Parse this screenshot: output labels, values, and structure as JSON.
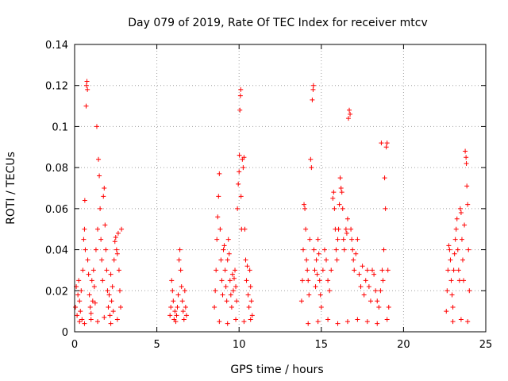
{
  "chart_data": {
    "type": "scatter",
    "title": "Day 079 of 2019, Rate Of TEC Index for receiver mtcv",
    "xlabel": "GPS time / hours",
    "ylabel": "ROTI / TECUs",
    "xlim": [
      0,
      25
    ],
    "ylim": [
      0,
      0.14
    ],
    "x_ticks": [
      0,
      5,
      10,
      15,
      20,
      25
    ],
    "x_tick_labels": [
      "0",
      "5",
      "10",
      "15",
      "20",
      "25"
    ],
    "y_ticks": [
      0,
      0.02,
      0.04,
      0.06,
      0.08,
      0.1,
      0.12,
      0.14
    ],
    "y_tick_labels": [
      "0",
      "0.02",
      "0.04",
      "0.06",
      "0.08",
      "0.1",
      "0.12",
      "0.14"
    ],
    "grid": true,
    "marker": "+",
    "color": "#ff0000",
    "series": [
      {
        "name": "ROTI",
        "points": [
          [
            0.05,
            0.012
          ],
          [
            0.1,
            0.022
          ],
          [
            0.15,
            0.008
          ],
          [
            0.2,
            0.018
          ],
          [
            0.25,
            0.025
          ],
          [
            0.3,
            0.015
          ],
          [
            0.35,
            0.01
          ],
          [
            0.4,
            0.02
          ],
          [
            0.45,
            0.006
          ],
          [
            0.5,
            0.03
          ],
          [
            0.55,
            0.045
          ],
          [
            0.6,
            0.05
          ],
          [
            0.62,
            0.064
          ],
          [
            0.65,
            0.04
          ],
          [
            0.7,
            0.11
          ],
          [
            0.72,
            0.12
          ],
          [
            0.75,
            0.122
          ],
          [
            0.78,
            0.118
          ],
          [
            0.8,
            0.035
          ],
          [
            0.85,
            0.028
          ],
          [
            0.9,
            0.018
          ],
          [
            0.95,
            0.012
          ],
          [
            1.0,
            0.009
          ],
          [
            1.05,
            0.025
          ],
          [
            1.1,
            0.015
          ],
          [
            1.15,
            0.03
          ],
          [
            1.2,
            0.022
          ],
          [
            1.25,
            0.014
          ],
          [
            1.3,
            0.04
          ],
          [
            1.35,
            0.1
          ],
          [
            1.4,
            0.05
          ],
          [
            1.45,
            0.084
          ],
          [
            1.5,
            0.076
          ],
          [
            1.55,
            0.06
          ],
          [
            1.6,
            0.045
          ],
          [
            1.65,
            0.035
          ],
          [
            1.7,
            0.025
          ],
          [
            1.75,
            0.066
          ],
          [
            1.8,
            0.07
          ],
          [
            1.85,
            0.052
          ],
          [
            1.9,
            0.04
          ],
          [
            1.95,
            0.03
          ],
          [
            2.0,
            0.02
          ],
          [
            2.05,
            0.012
          ],
          [
            2.1,
            0.018
          ],
          [
            2.15,
            0.008
          ],
          [
            2.2,
            0.028
          ],
          [
            2.25,
            0.015
          ],
          [
            2.3,
            0.022
          ],
          [
            2.35,
            0.01
          ],
          [
            2.4,
            0.035
          ],
          [
            2.45,
            0.044
          ],
          [
            2.5,
            0.046
          ],
          [
            2.55,
            0.04
          ],
          [
            2.6,
            0.038
          ],
          [
            2.65,
            0.048
          ],
          [
            2.7,
            0.03
          ],
          [
            2.75,
            0.02
          ],
          [
            2.8,
            0.012
          ],
          [
            2.85,
            0.05
          ],
          [
            0.3,
            0.005
          ],
          [
            0.6,
            0.004
          ],
          [
            1.0,
            0.006
          ],
          [
            1.4,
            0.005
          ],
          [
            1.8,
            0.007
          ],
          [
            2.2,
            0.004
          ],
          [
            2.6,
            0.006
          ],
          [
            5.8,
            0.008
          ],
          [
            5.85,
            0.012
          ],
          [
            5.9,
            0.025
          ],
          [
            5.95,
            0.02
          ],
          [
            6.0,
            0.015
          ],
          [
            6.05,
            0.006
          ],
          [
            6.1,
            0.01
          ],
          [
            6.15,
            0.005
          ],
          [
            6.2,
            0.008
          ],
          [
            6.25,
            0.012
          ],
          [
            6.3,
            0.018
          ],
          [
            6.35,
            0.035
          ],
          [
            6.4,
            0.04
          ],
          [
            6.45,
            0.03
          ],
          [
            6.5,
            0.022
          ],
          [
            6.55,
            0.015
          ],
          [
            6.6,
            0.01
          ],
          [
            6.65,
            0.006
          ],
          [
            6.7,
            0.02
          ],
          [
            6.75,
            0.012
          ],
          [
            6.8,
            0.008
          ],
          [
            8.5,
            0.012
          ],
          [
            8.55,
            0.02
          ],
          [
            8.6,
            0.03
          ],
          [
            8.65,
            0.045
          ],
          [
            8.7,
            0.056
          ],
          [
            8.75,
            0.066
          ],
          [
            8.8,
            0.077
          ],
          [
            8.85,
            0.05
          ],
          [
            8.9,
            0.035
          ],
          [
            8.95,
            0.025
          ],
          [
            9.0,
            0.018
          ],
          [
            9.05,
            0.04
          ],
          [
            9.1,
            0.042
          ],
          [
            9.15,
            0.03
          ],
          [
            9.2,
            0.022
          ],
          [
            9.25,
            0.015
          ],
          [
            9.3,
            0.035
          ],
          [
            9.35,
            0.045
          ],
          [
            9.4,
            0.038
          ],
          [
            9.45,
            0.025
          ],
          [
            9.5,
            0.018
          ],
          [
            9.55,
            0.012
          ],
          [
            9.6,
            0.028
          ],
          [
            9.65,
            0.02
          ],
          [
            9.7,
            0.026
          ],
          [
            9.75,
            0.03
          ],
          [
            9.8,
            0.022
          ],
          [
            9.85,
            0.015
          ],
          [
            9.9,
            0.06
          ],
          [
            9.95,
            0.072
          ],
          [
            10.0,
            0.078
          ],
          [
            10.02,
            0.086
          ],
          [
            10.05,
            0.108
          ],
          [
            10.08,
            0.115
          ],
          [
            10.1,
            0.118
          ],
          [
            10.12,
            0.066
          ],
          [
            10.15,
            0.05
          ],
          [
            10.2,
            0.084
          ],
          [
            10.25,
            0.08
          ],
          [
            10.3,
            0.085
          ],
          [
            10.35,
            0.05
          ],
          [
            10.4,
            0.035
          ],
          [
            10.45,
            0.025
          ],
          [
            10.5,
            0.032
          ],
          [
            10.55,
            0.018
          ],
          [
            10.6,
            0.012
          ],
          [
            10.65,
            0.03
          ],
          [
            10.7,
            0.022
          ],
          [
            10.75,
            0.015
          ],
          [
            10.8,
            0.008
          ],
          [
            8.8,
            0.005
          ],
          [
            9.3,
            0.004
          ],
          [
            9.8,
            0.006
          ],
          [
            10.3,
            0.005
          ],
          [
            10.7,
            0.006
          ],
          [
            13.8,
            0.015
          ],
          [
            13.85,
            0.025
          ],
          [
            13.9,
            0.04
          ],
          [
            13.95,
            0.062
          ],
          [
            14.0,
            0.06
          ],
          [
            14.05,
            0.05
          ],
          [
            14.1,
            0.035
          ],
          [
            14.15,
            0.03
          ],
          [
            14.2,
            0.025
          ],
          [
            14.25,
            0.018
          ],
          [
            14.3,
            0.045
          ],
          [
            14.35,
            0.084
          ],
          [
            14.4,
            0.08
          ],
          [
            14.45,
            0.113
          ],
          [
            14.5,
            0.118
          ],
          [
            14.52,
            0.12
          ],
          [
            14.55,
            0.04
          ],
          [
            14.6,
            0.03
          ],
          [
            14.65,
            0.022
          ],
          [
            14.7,
            0.035
          ],
          [
            14.75,
            0.028
          ],
          [
            14.8,
            0.045
          ],
          [
            14.85,
            0.038
          ],
          [
            14.9,
            0.025
          ],
          [
            14.95,
            0.018
          ],
          [
            15.0,
            0.012
          ],
          [
            15.1,
            0.03
          ],
          [
            15.2,
            0.04
          ],
          [
            15.3,
            0.035
          ],
          [
            15.4,
            0.025
          ],
          [
            15.5,
            0.02
          ],
          [
            15.6,
            0.03
          ],
          [
            15.7,
            0.065
          ],
          [
            15.75,
            0.068
          ],
          [
            15.8,
            0.06
          ],
          [
            15.85,
            0.05
          ],
          [
            15.9,
            0.04
          ],
          [
            15.95,
            0.035
          ],
          [
            16.0,
            0.045
          ],
          [
            16.05,
            0.05
          ],
          [
            16.1,
            0.062
          ],
          [
            16.15,
            0.075
          ],
          [
            16.2,
            0.07
          ],
          [
            16.25,
            0.068
          ],
          [
            16.3,
            0.06
          ],
          [
            16.35,
            0.045
          ],
          [
            16.4,
            0.04
          ],
          [
            16.5,
            0.05
          ],
          [
            16.55,
            0.048
          ],
          [
            16.6,
            0.055
          ],
          [
            16.65,
            0.104
          ],
          [
            16.7,
            0.108
          ],
          [
            16.75,
            0.106
          ],
          [
            16.8,
            0.05
          ],
          [
            16.85,
            0.045
          ],
          [
            16.9,
            0.04
          ],
          [
            16.95,
            0.035
          ],
          [
            17.0,
            0.03
          ],
          [
            17.1,
            0.038
          ],
          [
            17.2,
            0.045
          ],
          [
            17.3,
            0.028
          ],
          [
            17.4,
            0.022
          ],
          [
            17.5,
            0.032
          ],
          [
            17.6,
            0.018
          ],
          [
            17.7,
            0.025
          ],
          [
            17.8,
            0.03
          ],
          [
            17.9,
            0.022
          ],
          [
            18.0,
            0.015
          ],
          [
            18.1,
            0.03
          ],
          [
            18.2,
            0.028
          ],
          [
            18.3,
            0.02
          ],
          [
            18.4,
            0.015
          ],
          [
            18.5,
            0.012
          ],
          [
            18.6,
            0.02
          ],
          [
            18.65,
            0.092
          ],
          [
            18.7,
            0.03
          ],
          [
            18.75,
            0.025
          ],
          [
            18.8,
            0.04
          ],
          [
            18.85,
            0.075
          ],
          [
            18.9,
            0.06
          ],
          [
            18.95,
            0.09
          ],
          [
            19.0,
            0.092
          ],
          [
            19.05,
            0.03
          ],
          [
            19.1,
            0.012
          ],
          [
            14.2,
            0.004
          ],
          [
            14.8,
            0.005
          ],
          [
            15.4,
            0.006
          ],
          [
            16.0,
            0.004
          ],
          [
            16.6,
            0.005
          ],
          [
            17.2,
            0.006
          ],
          [
            17.8,
            0.005
          ],
          [
            18.4,
            0.004
          ],
          [
            19.0,
            0.006
          ],
          [
            22.6,
            0.01
          ],
          [
            22.65,
            0.02
          ],
          [
            22.7,
            0.03
          ],
          [
            22.75,
            0.042
          ],
          [
            22.8,
            0.04
          ],
          [
            22.85,
            0.035
          ],
          [
            22.9,
            0.025
          ],
          [
            22.95,
            0.018
          ],
          [
            23.0,
            0.012
          ],
          [
            23.05,
            0.03
          ],
          [
            23.1,
            0.038
          ],
          [
            23.15,
            0.045
          ],
          [
            23.2,
            0.05
          ],
          [
            23.25,
            0.055
          ],
          [
            23.3,
            0.04
          ],
          [
            23.35,
            0.03
          ],
          [
            23.4,
            0.025
          ],
          [
            23.45,
            0.06
          ],
          [
            23.5,
            0.058
          ],
          [
            23.55,
            0.045
          ],
          [
            23.6,
            0.035
          ],
          [
            23.65,
            0.025
          ],
          [
            23.7,
            0.052
          ],
          [
            23.75,
            0.088
          ],
          [
            23.8,
            0.085
          ],
          [
            23.82,
            0.082
          ],
          [
            23.85,
            0.071
          ],
          [
            23.9,
            0.062
          ],
          [
            23.95,
            0.04
          ],
          [
            24.0,
            0.02
          ],
          [
            23.0,
            0.005
          ],
          [
            23.5,
            0.006
          ],
          [
            23.9,
            0.005
          ]
        ]
      }
    ]
  }
}
